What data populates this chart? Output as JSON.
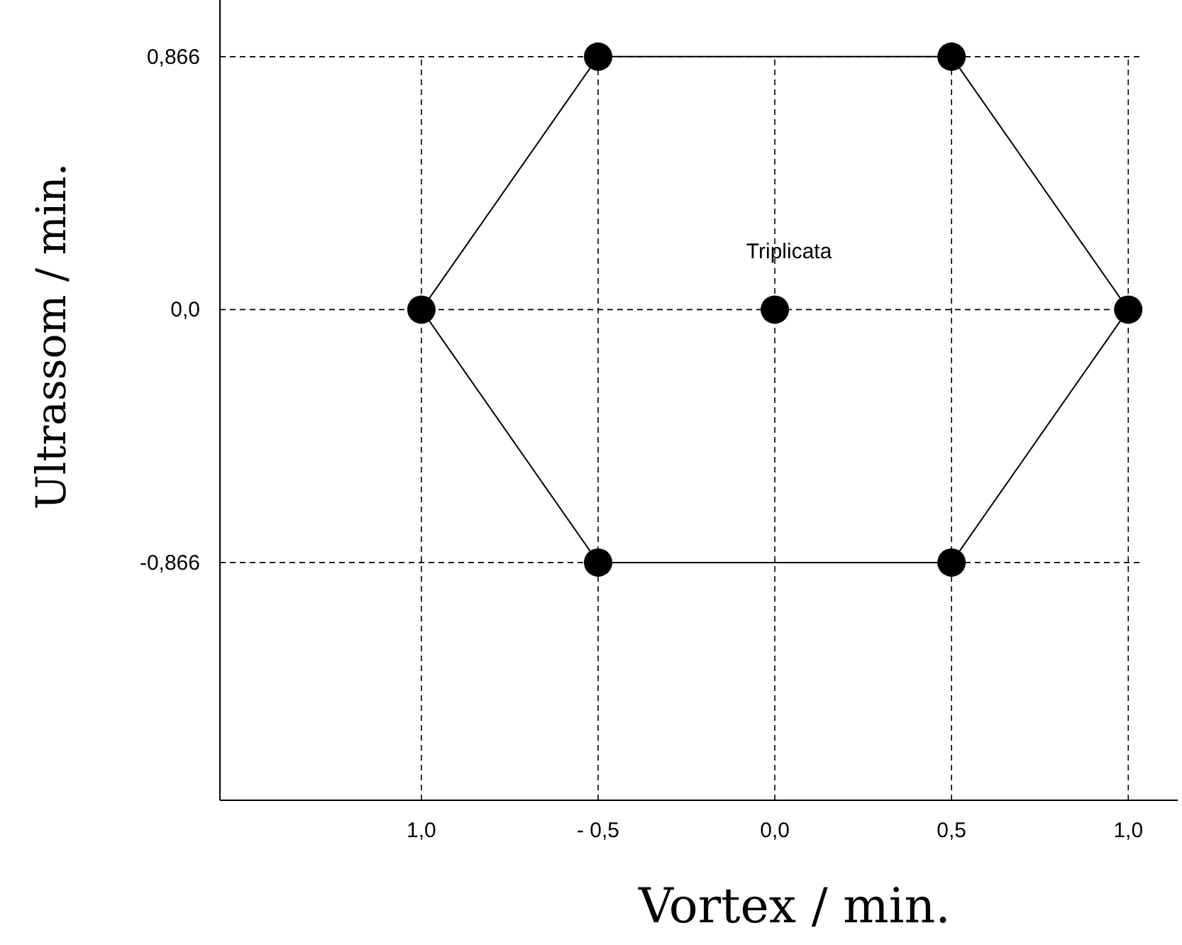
{
  "chart_data": {
    "type": "scatter",
    "xlabel": "Vortex / min.",
    "ylabel": "Ultrassom / min.",
    "xlim": [
      -1.57,
      1.14
    ],
    "ylim": [
      -1.68,
      1.06
    ],
    "xticks": [
      {
        "value": -1,
        "label": "1,0"
      },
      {
        "value": -0.5,
        "label": "- 0,5"
      },
      {
        "value": 0,
        "label": "0,0"
      },
      {
        "value": 0.5,
        "label": "0,5"
      },
      {
        "value": 1,
        "label": "1,0"
      }
    ],
    "yticks": [
      {
        "value": -0.866,
        "label": "-0,866"
      },
      {
        "value": 0,
        "label": "0,0"
      },
      {
        "value": 0.866,
        "label": "0,866"
      }
    ],
    "grid": true,
    "series": [
      {
        "type": "line",
        "color": "#000000",
        "marker": "none",
        "line_style": "solid",
        "x": [
          -1,
          -0.5,
          0.5,
          1
        ],
        "values": [
          0,
          0.866,
          0.866,
          0
        ]
      },
      {
        "type": "line",
        "color": "#000000",
        "marker": "none",
        "line_style": "solid",
        "x": [
          -1,
          -0.5,
          0.5,
          1
        ],
        "values": [
          0,
          -0.866,
          -0.866,
          0
        ]
      },
      {
        "color": "#000000",
        "marker": "circle",
        "x": [
          -1,
          -0.5,
          0,
          0.5,
          1,
          -0.5,
          0.5
        ],
        "values": [
          0,
          0.866,
          0,
          0.866,
          0,
          -0.866,
          -0.866
        ]
      }
    ],
    "annotations": [
      {
        "text": "Triplicata",
        "x": 0,
        "y": 0
      }
    ]
  }
}
